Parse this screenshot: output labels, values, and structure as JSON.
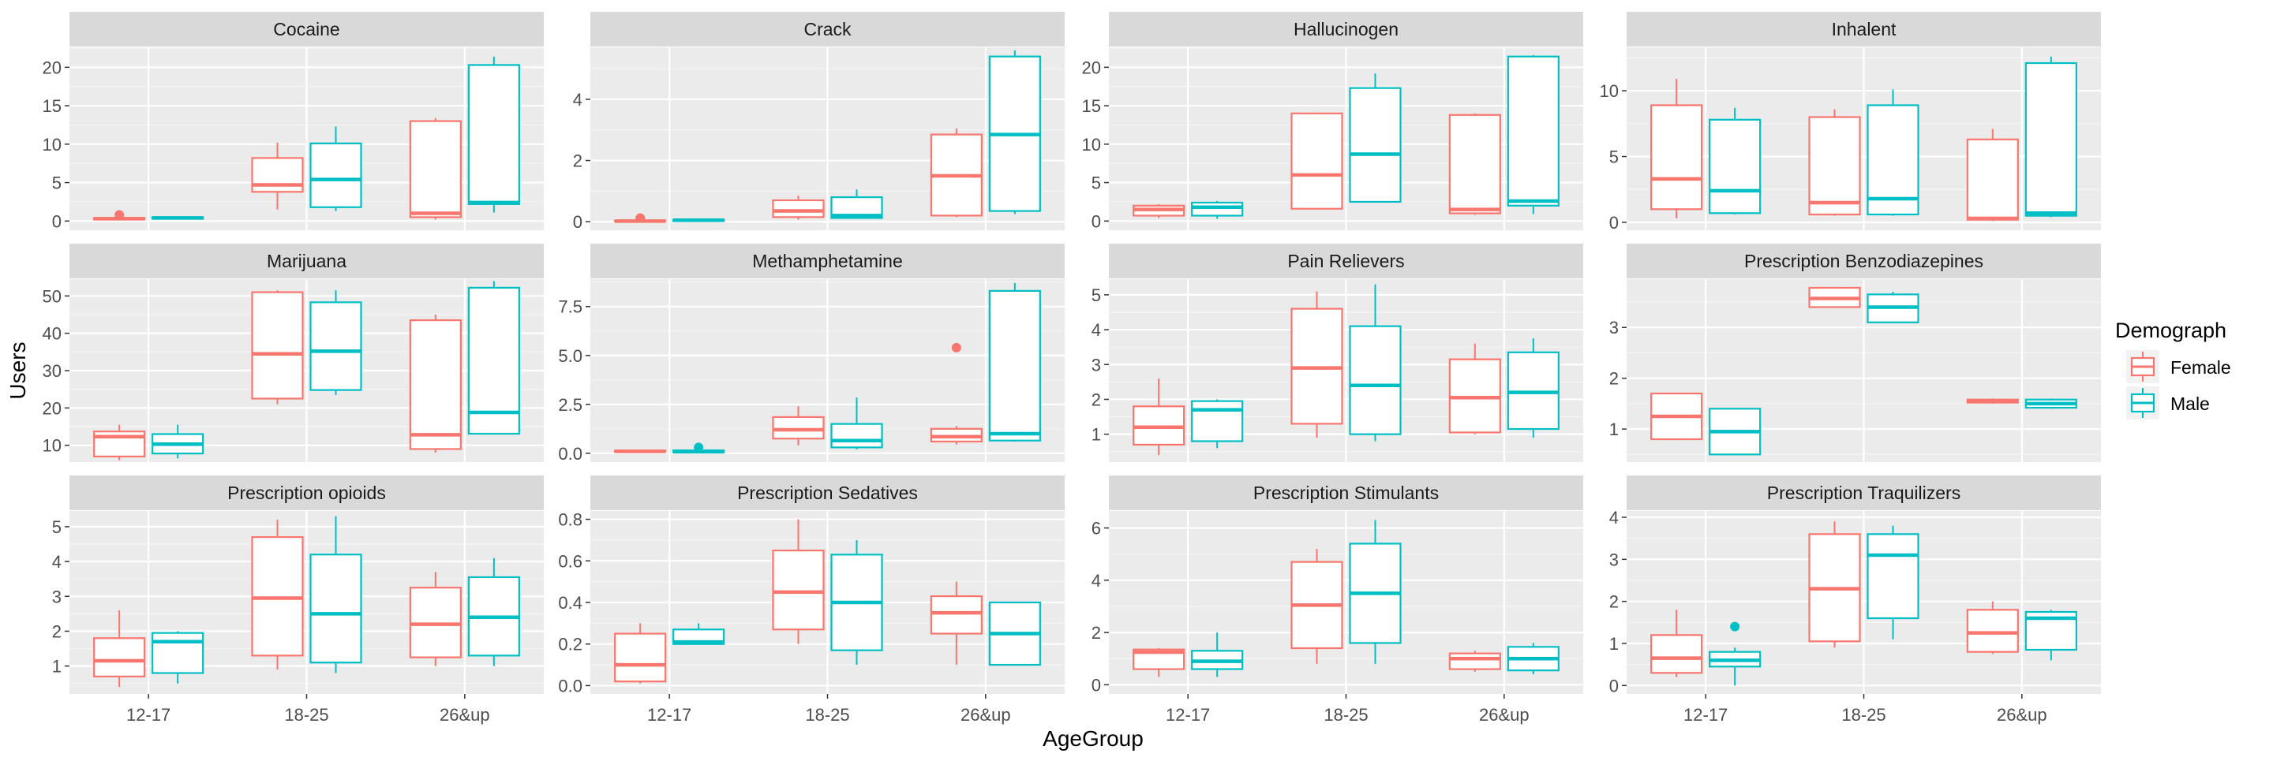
{
  "chart_data": {
    "type": "box",
    "x_label": "AgeGroup",
    "y_label": "Users",
    "categories": [
      "12-17",
      "18-25",
      "26&up"
    ],
    "legend": {
      "title": "Demograph",
      "position": "right",
      "entries": [
        {
          "name": "Female",
          "color": "#F8766D"
        },
        {
          "name": "Male",
          "color": "#00BFC4"
        }
      ]
    },
    "grid": true,
    "facets": [
      {
        "title": "Cocaine",
        "ylim": [
          -1.2,
          22.6
        ],
        "yticks": [
          0,
          5,
          10,
          15,
          20
        ],
        "boxes": {
          "Female": [
            {
              "min": 0.1,
              "q1": 0.2,
              "median": 0.3,
              "q3": 0.4,
              "max": 0.5,
              "outliers": [
                0.8
              ]
            },
            {
              "min": 1.5,
              "q1": 3.8,
              "median": 4.7,
              "q3": 8.2,
              "max": 10.2,
              "outliers": []
            },
            {
              "min": 0.2,
              "q1": 0.5,
              "median": 1.0,
              "q3": 13.0,
              "max": 13.4,
              "outliers": []
            }
          ],
          "Male": [
            {
              "min": 0.2,
              "q1": 0.3,
              "median": 0.4,
              "q3": 0.5,
              "max": 0.6,
              "outliers": []
            },
            {
              "min": 1.3,
              "q1": 1.8,
              "median": 5.4,
              "q3": 10.1,
              "max": 12.3,
              "outliers": []
            },
            {
              "min": 1.1,
              "q1": 2.2,
              "median": 2.4,
              "q3": 20.3,
              "max": 21.4,
              "outliers": []
            }
          ]
        }
      },
      {
        "title": "Crack",
        "ylim": [
          -0.28,
          5.7
        ],
        "yticks": [
          0,
          2,
          4
        ],
        "boxes": {
          "Female": [
            {
              "min": 0.0,
              "q1": 0.01,
              "median": 0.02,
              "q3": 0.04,
              "max": 0.06,
              "outliers": [
                0.12
              ]
            },
            {
              "min": 0.07,
              "q1": 0.15,
              "median": 0.35,
              "q3": 0.7,
              "max": 0.85,
              "outliers": []
            },
            {
              "min": 0.15,
              "q1": 0.2,
              "median": 1.5,
              "q3": 2.85,
              "max": 3.05,
              "outliers": []
            }
          ],
          "Male": [
            {
              "min": 0.0,
              "q1": 0.02,
              "median": 0.05,
              "q3": 0.07,
              "max": 0.08,
              "outliers": []
            },
            {
              "min": 0.1,
              "q1": 0.12,
              "median": 0.2,
              "q3": 0.8,
              "max": 1.05,
              "outliers": []
            },
            {
              "min": 0.25,
              "q1": 0.35,
              "median": 2.85,
              "q3": 5.4,
              "max": 5.6,
              "outliers": []
            }
          ]
        }
      },
      {
        "title": "Hallucinogen",
        "ylim": [
          -1.2,
          22.6
        ],
        "yticks": [
          0,
          5,
          10,
          15,
          20
        ],
        "boxes": {
          "Female": [
            {
              "min": 0.4,
              "q1": 0.7,
              "median": 1.5,
              "q3": 2.0,
              "max": 2.2,
              "outliers": []
            },
            {
              "min": 1.5,
              "q1": 1.6,
              "median": 6.0,
              "q3": 14.0,
              "max": 14.1,
              "outliers": []
            },
            {
              "min": 0.8,
              "q1": 1.0,
              "median": 1.5,
              "q3": 13.8,
              "max": 14.0,
              "outliers": []
            }
          ],
          "Male": [
            {
              "min": 0.3,
              "q1": 0.7,
              "median": 1.8,
              "q3": 2.4,
              "max": 2.6,
              "outliers": []
            },
            {
              "min": 2.4,
              "q1": 2.5,
              "median": 8.7,
              "q3": 17.3,
              "max": 19.2,
              "outliers": []
            },
            {
              "min": 0.9,
              "q1": 2.0,
              "median": 2.6,
              "q3": 21.4,
              "max": 21.6,
              "outliers": []
            }
          ]
        }
      },
      {
        "title": "Inhalent",
        "ylim": [
          -0.6,
          13.3
        ],
        "yticks": [
          0,
          5,
          10
        ],
        "boxes": {
          "Female": [
            {
              "min": 0.3,
              "q1": 1.0,
              "median": 3.3,
              "q3": 8.9,
              "max": 10.9,
              "outliers": []
            },
            {
              "min": 0.5,
              "q1": 0.6,
              "median": 1.5,
              "q3": 8.0,
              "max": 8.6,
              "outliers": []
            },
            {
              "min": 0.1,
              "q1": 0.2,
              "median": 0.3,
              "q3": 6.3,
              "max": 7.1,
              "outliers": []
            }
          ],
          "Male": [
            {
              "min": 0.6,
              "q1": 0.7,
              "median": 2.4,
              "q3": 7.8,
              "max": 8.7,
              "outliers": []
            },
            {
              "min": 0.5,
              "q1": 0.6,
              "median": 1.8,
              "q3": 8.9,
              "max": 10.1,
              "outliers": []
            },
            {
              "min": 0.4,
              "q1": 0.5,
              "median": 0.7,
              "q3": 12.1,
              "max": 12.6,
              "outliers": []
            }
          ]
        }
      },
      {
        "title": "Marijuana",
        "ylim": [
          5.5,
          54.5
        ],
        "yticks": [
          10,
          20,
          30,
          40,
          50
        ],
        "boxes": {
          "Female": [
            {
              "min": 6.0,
              "q1": 7.0,
              "median": 12.3,
              "q3": 13.7,
              "max": 15.5,
              "outliers": []
            },
            {
              "min": 21.0,
              "q1": 22.5,
              "median": 34.5,
              "q3": 51.0,
              "max": 51.5,
              "outliers": []
            },
            {
              "min": 8.0,
              "q1": 9.0,
              "median": 12.8,
              "q3": 43.5,
              "max": 45.0,
              "outliers": []
            }
          ],
          "Male": [
            {
              "min": 6.5,
              "q1": 7.8,
              "median": 10.3,
              "q3": 13.0,
              "max": 15.5,
              "outliers": []
            },
            {
              "min": 23.5,
              "q1": 24.8,
              "median": 35.2,
              "q3": 48.3,
              "max": 51.5,
              "outliers": []
            },
            {
              "min": 13.0,
              "q1": 13.1,
              "median": 18.8,
              "q3": 52.2,
              "max": 54.0,
              "outliers": []
            }
          ]
        }
      },
      {
        "title": "Methamphetamine",
        "ylim": [
          -0.45,
          8.9
        ],
        "yticks": [
          0.0,
          2.5,
          5.0,
          7.5
        ],
        "boxes": {
          "Female": [
            {
              "min": 0.05,
              "q1": 0.07,
              "median": 0.1,
              "q3": 0.14,
              "max": 0.17,
              "outliers": []
            },
            {
              "min": 0.4,
              "q1": 0.75,
              "median": 1.2,
              "q3": 1.85,
              "max": 2.4,
              "outliers": []
            },
            {
              "min": 0.45,
              "q1": 0.6,
              "median": 0.85,
              "q3": 1.25,
              "max": 1.4,
              "outliers": [
                5.4
              ]
            }
          ],
          "Male": [
            {
              "min": 0.03,
              "q1": 0.05,
              "median": 0.08,
              "q3": 0.15,
              "max": 0.2,
              "outliers": [
                0.3
              ]
            },
            {
              "min": 0.2,
              "q1": 0.3,
              "median": 0.65,
              "q3": 1.5,
              "max": 2.85,
              "outliers": []
            },
            {
              "min": 0.6,
              "q1": 0.65,
              "median": 1.0,
              "q3": 8.3,
              "max": 8.7,
              "outliers": []
            }
          ]
        }
      },
      {
        "title": "Pain Relievers",
        "ylim": [
          0.2,
          5.45
        ],
        "yticks": [
          1,
          2,
          3,
          4,
          5
        ],
        "boxes": {
          "Female": [
            {
              "min": 0.4,
              "q1": 0.7,
              "median": 1.2,
              "q3": 1.8,
              "max": 2.6,
              "outliers": []
            },
            {
              "min": 0.9,
              "q1": 1.3,
              "median": 2.9,
              "q3": 4.6,
              "max": 5.1,
              "outliers": []
            },
            {
              "min": 1.0,
              "q1": 1.05,
              "median": 2.05,
              "q3": 3.15,
              "max": 3.6,
              "outliers": []
            }
          ],
          "Male": [
            {
              "min": 0.6,
              "q1": 0.8,
              "median": 1.7,
              "q3": 1.95,
              "max": 2.0,
              "outliers": []
            },
            {
              "min": 0.8,
              "q1": 1.0,
              "median": 2.4,
              "q3": 4.1,
              "max": 5.3,
              "outliers": []
            },
            {
              "min": 0.9,
              "q1": 1.15,
              "median": 2.2,
              "q3": 3.35,
              "max": 3.75,
              "outliers": []
            }
          ]
        }
      },
      {
        "title": "Prescription Benzodiazepines",
        "ylim": [
          0.35,
          3.95
        ],
        "yticks": [
          1,
          2,
          3
        ],
        "boxes": {
          "Female": [
            {
              "min": 0.8,
              "q1": 0.8,
              "median": 1.25,
              "q3": 1.7,
              "max": 1.7,
              "outliers": []
            },
            {
              "min": 3.4,
              "q1": 3.4,
              "median": 3.57,
              "q3": 3.78,
              "max": 3.8,
              "outliers": []
            },
            {
              "min": 1.5,
              "q1": 1.52,
              "median": 1.55,
              "q3": 1.58,
              "max": 1.6,
              "outliers": []
            }
          ],
          "Male": [
            {
              "min": 0.5,
              "q1": 0.5,
              "median": 0.95,
              "q3": 1.4,
              "max": 1.4,
              "outliers": []
            },
            {
              "min": 3.1,
              "q1": 3.1,
              "median": 3.4,
              "q3": 3.65,
              "max": 3.7,
              "outliers": []
            },
            {
              "min": 1.4,
              "q1": 1.42,
              "median": 1.5,
              "q3": 1.58,
              "max": 1.6,
              "outliers": []
            }
          ]
        }
      },
      {
        "title": "Prescription opioids",
        "ylim": [
          0.2,
          5.45
        ],
        "yticks": [
          1,
          2,
          3,
          4,
          5
        ],
        "boxes": {
          "Female": [
            {
              "min": 0.4,
              "q1": 0.7,
              "median": 1.15,
              "q3": 1.8,
              "max": 2.6,
              "outliers": []
            },
            {
              "min": 0.9,
              "q1": 1.3,
              "median": 2.95,
              "q3": 4.7,
              "max": 5.2,
              "outliers": []
            },
            {
              "min": 1.0,
              "q1": 1.25,
              "median": 2.2,
              "q3": 3.25,
              "max": 3.7,
              "outliers": []
            }
          ],
          "Male": [
            {
              "min": 0.5,
              "q1": 0.8,
              "median": 1.7,
              "q3": 1.95,
              "max": 2.0,
              "outliers": []
            },
            {
              "min": 0.8,
              "q1": 1.1,
              "median": 2.5,
              "q3": 4.2,
              "max": 5.3,
              "outliers": []
            },
            {
              "min": 1.0,
              "q1": 1.3,
              "median": 2.4,
              "q3": 3.55,
              "max": 4.1,
              "outliers": []
            }
          ]
        }
      },
      {
        "title": "Prescription Sedatives",
        "ylim": [
          -0.04,
          0.84
        ],
        "yticks": [
          0.0,
          0.2,
          0.4,
          0.6,
          0.8
        ],
        "boxes": {
          "Female": [
            {
              "min": 0.01,
              "q1": 0.02,
              "median": 0.1,
              "q3": 0.25,
              "max": 0.3,
              "outliers": []
            },
            {
              "min": 0.2,
              "q1": 0.27,
              "median": 0.45,
              "q3": 0.65,
              "max": 0.8,
              "outliers": []
            },
            {
              "min": 0.1,
              "q1": 0.25,
              "median": 0.35,
              "q3": 0.43,
              "max": 0.5,
              "outliers": []
            }
          ],
          "Male": [
            {
              "min": 0.2,
              "q1": 0.2,
              "median": 0.21,
              "q3": 0.27,
              "max": 0.3,
              "outliers": []
            },
            {
              "min": 0.1,
              "q1": 0.17,
              "median": 0.4,
              "q3": 0.63,
              "max": 0.7,
              "outliers": []
            },
            {
              "min": 0.1,
              "q1": 0.1,
              "median": 0.25,
              "q3": 0.4,
              "max": 0.4,
              "outliers": []
            }
          ]
        }
      },
      {
        "title": "Prescription Stimulants",
        "ylim": [
          -0.35,
          6.65
        ],
        "yticks": [
          0,
          2,
          4,
          6
        ],
        "boxes": {
          "Female": [
            {
              "min": 0.3,
              "q1": 0.6,
              "median": 1.25,
              "q3": 1.35,
              "max": 1.4,
              "outliers": []
            },
            {
              "min": 0.8,
              "q1": 1.4,
              "median": 3.05,
              "q3": 4.7,
              "max": 5.2,
              "outliers": []
            },
            {
              "min": 0.5,
              "q1": 0.6,
              "median": 1.0,
              "q3": 1.2,
              "max": 1.3,
              "outliers": []
            }
          ],
          "Male": [
            {
              "min": 0.3,
              "q1": 0.6,
              "median": 0.9,
              "q3": 1.3,
              "max": 2.0,
              "outliers": []
            },
            {
              "min": 0.8,
              "q1": 1.6,
              "median": 3.5,
              "q3": 5.4,
              "max": 6.3,
              "outliers": []
            },
            {
              "min": 0.4,
              "q1": 0.55,
              "median": 1.0,
              "q3": 1.45,
              "max": 1.6,
              "outliers": []
            }
          ]
        }
      },
      {
        "title": "Prescription Traquilizers",
        "ylim": [
          -0.2,
          4.15
        ],
        "yticks": [
          0,
          1,
          2,
          3,
          4
        ],
        "boxes": {
          "Female": [
            {
              "min": 0.2,
              "q1": 0.3,
              "median": 0.65,
              "q3": 1.2,
              "max": 1.8,
              "outliers": []
            },
            {
              "min": 0.9,
              "q1": 1.05,
              "median": 2.3,
              "q3": 3.6,
              "max": 3.9,
              "outliers": []
            },
            {
              "min": 0.75,
              "q1": 0.8,
              "median": 1.25,
              "q3": 1.8,
              "max": 2.0,
              "outliers": []
            }
          ],
          "Male": [
            {
              "min": 0.0,
              "q1": 0.45,
              "median": 0.6,
              "q3": 0.8,
              "max": 0.9,
              "outliers": [
                1.4
              ]
            },
            {
              "min": 1.1,
              "q1": 1.6,
              "median": 3.1,
              "q3": 3.6,
              "max": 3.8,
              "outliers": []
            },
            {
              "min": 0.6,
              "q1": 0.85,
              "median": 1.6,
              "q3": 1.75,
              "max": 1.8,
              "outliers": []
            }
          ]
        }
      }
    ]
  }
}
